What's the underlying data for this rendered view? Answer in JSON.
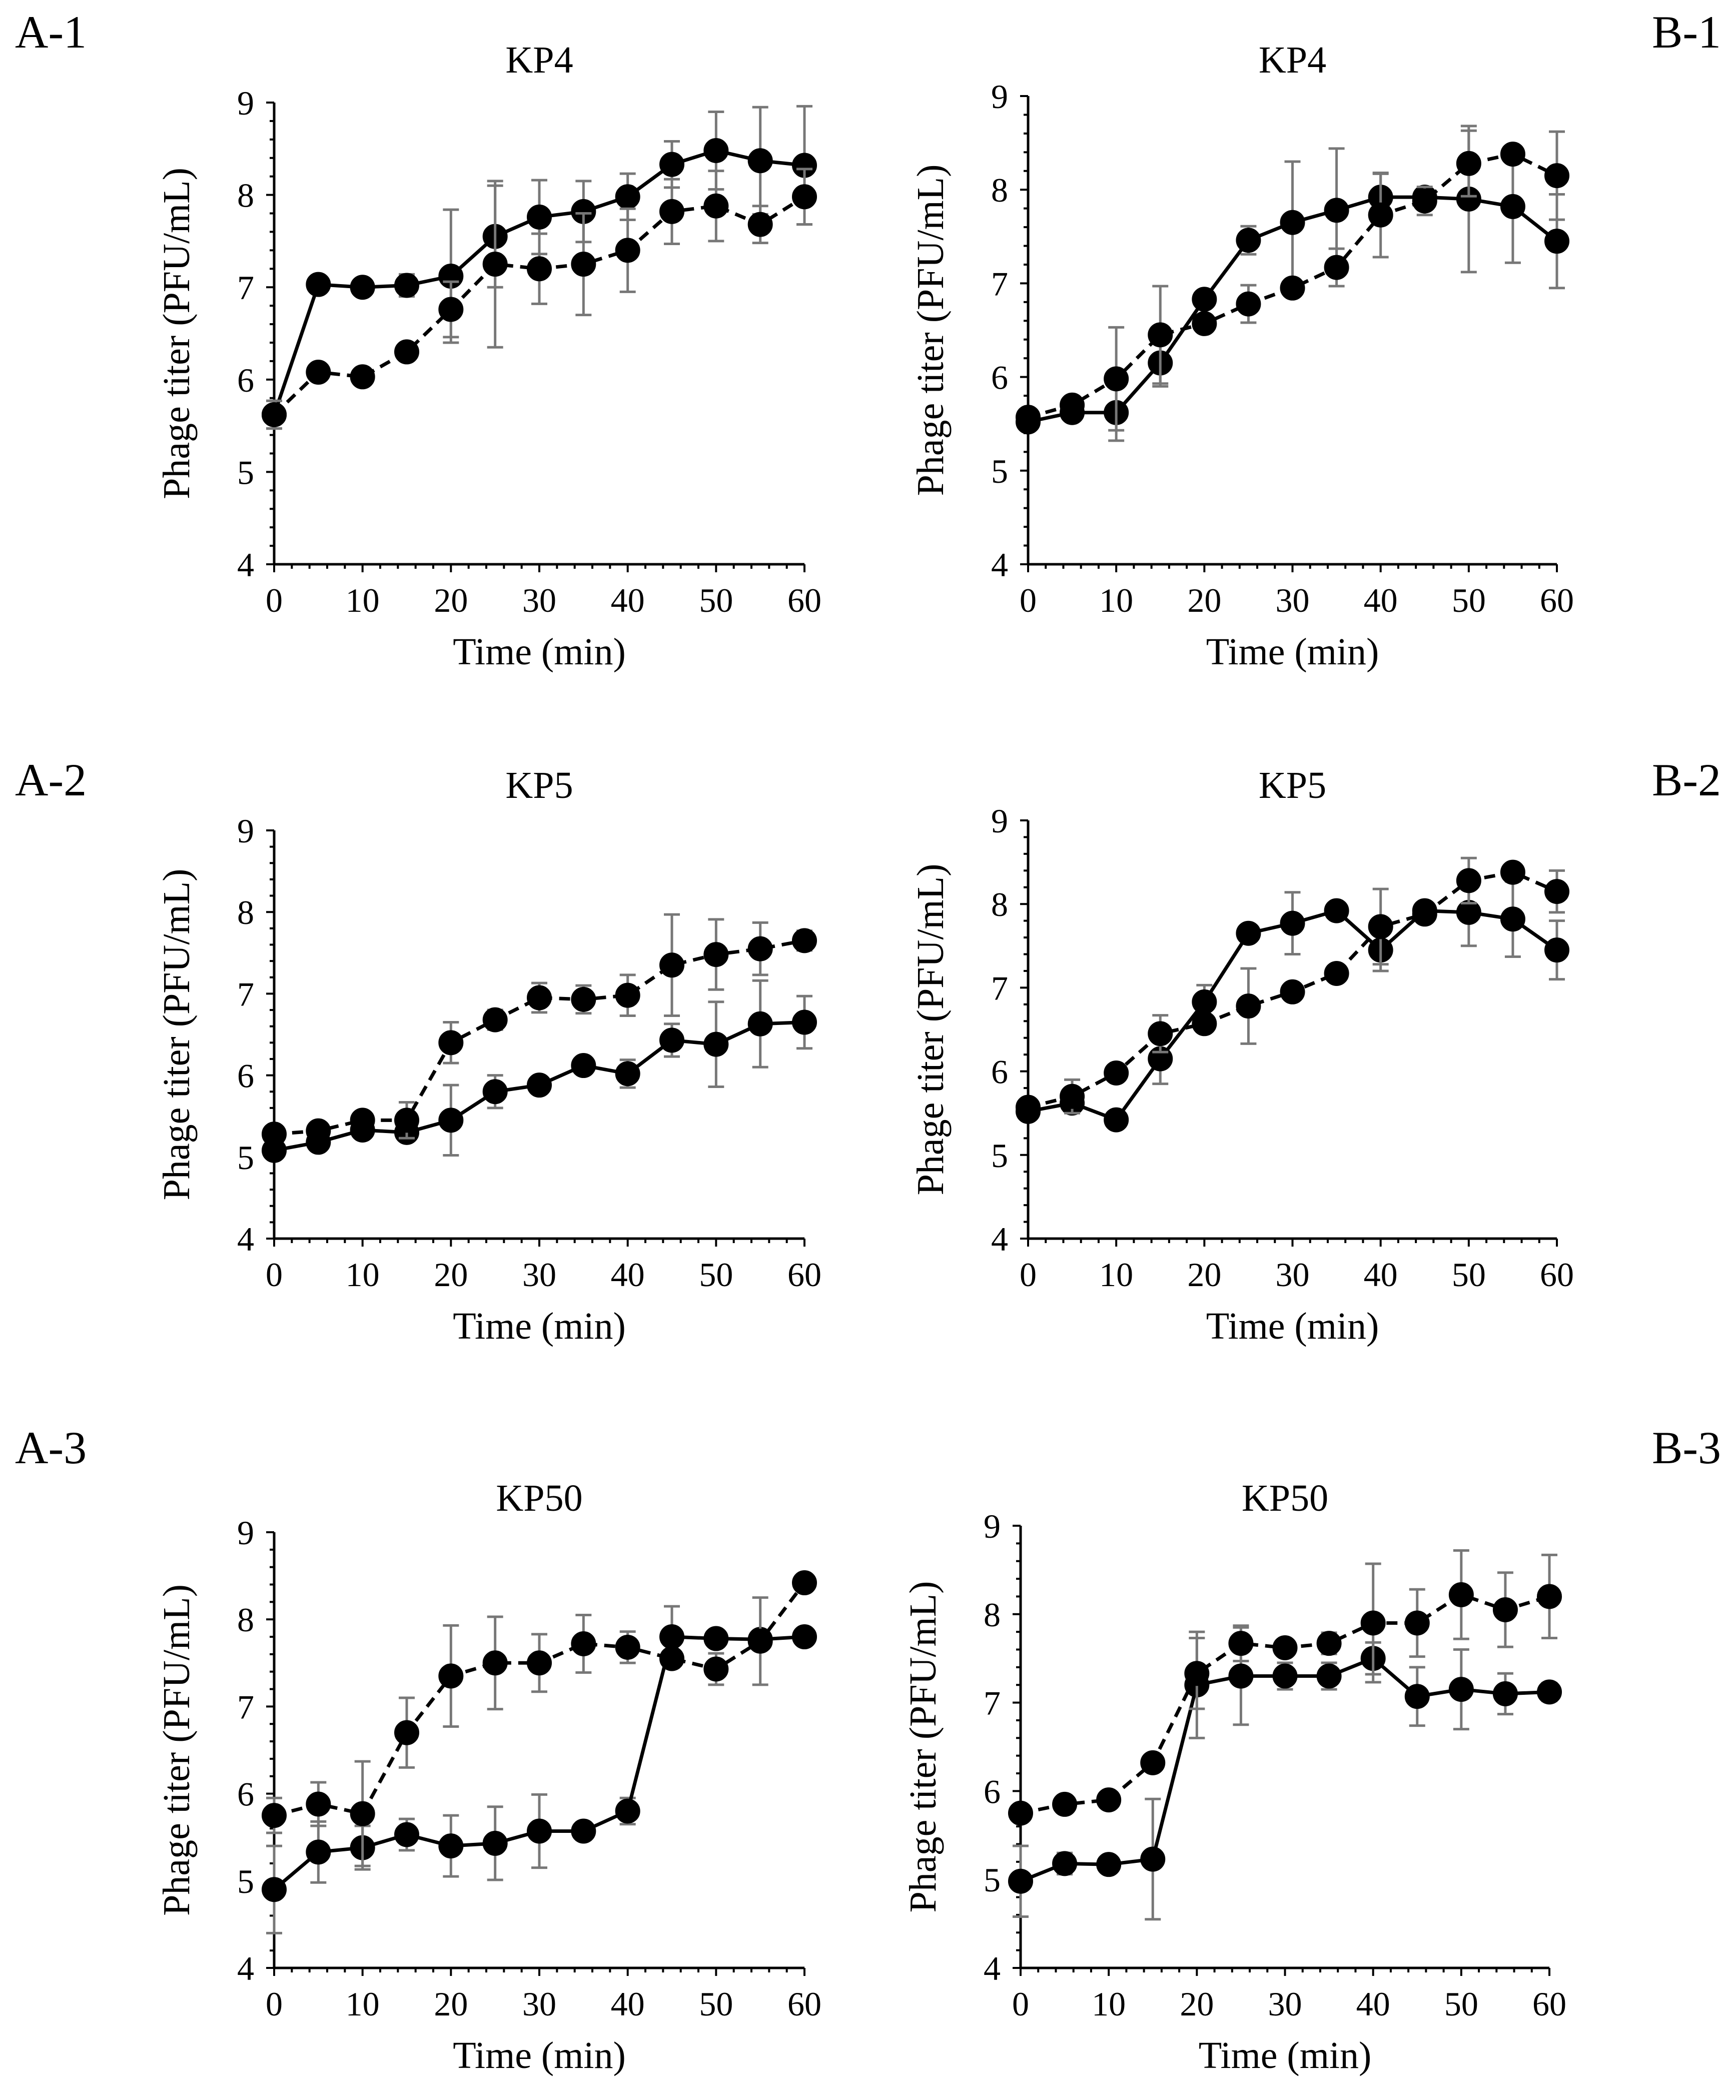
{
  "chart_data": [
    {
      "type": "line",
      "panel_label": "A-1",
      "title": "KP4",
      "xlabel": "Time (min)",
      "ylabel": "Phage titer (PFU/mL)",
      "xlim": [
        0,
        60
      ],
      "ylim": [
        4,
        9
      ],
      "x_ticks": [
        "0",
        "10",
        "20",
        "30",
        "40",
        "50",
        "60"
      ],
      "y_ticks": [
        "4",
        "5",
        "6",
        "7",
        "8",
        "9"
      ],
      "x": [
        0,
        5,
        10,
        15,
        20,
        25,
        30,
        35,
        40,
        45,
        50,
        55,
        60
      ],
      "series": [
        {
          "name": "solid",
          "style": "solid",
          "values": [
            5.62,
            7.03,
            7.0,
            7.02,
            7.12,
            7.55,
            7.76,
            7.82,
            7.98,
            8.33,
            8.48,
            8.37,
            8.32
          ],
          "errors": [
            0.15,
            0.05,
            0.05,
            0.12,
            0.72,
            0.55,
            0.4,
            0.33,
            0.25,
            0.25,
            0.42,
            0.58,
            0.64
          ]
        },
        {
          "name": "dashed",
          "style": "dashed",
          "values": [
            5.62,
            6.08,
            6.03,
            6.3,
            6.76,
            7.25,
            7.2,
            7.25,
            7.4,
            7.82,
            7.88,
            7.68,
            7.98
          ],
          "errors": [
            0.15,
            0.05,
            0.05,
            0.05,
            0.3,
            0.9,
            0.38,
            0.55,
            0.45,
            0.35,
            0.38,
            0.2,
            0.3
          ]
        }
      ]
    },
    {
      "type": "line",
      "panel_label": "B-1",
      "title": "KP4",
      "xlabel": "Time (min)",
      "ylabel": "Phage titer (PFU/mL)",
      "xlim": [
        0,
        60
      ],
      "ylim": [
        4,
        9
      ],
      "x_ticks": [
        "0",
        "10",
        "20",
        "30",
        "40",
        "50",
        "60"
      ],
      "y_ticks": [
        "4",
        "5",
        "6",
        "7",
        "8",
        "9"
      ],
      "x": [
        0,
        5,
        10,
        15,
        20,
        25,
        30,
        35,
        40,
        45,
        50,
        55,
        60
      ],
      "series": [
        {
          "name": "solid",
          "style": "solid",
          "values": [
            5.52,
            5.62,
            5.62,
            6.15,
            6.83,
            7.46,
            7.65,
            7.78,
            7.92,
            7.92,
            7.9,
            7.82,
            7.45
          ],
          "errors": [
            0.05,
            0.05,
            0.3,
            0.25,
            0.05,
            0.15,
            0.65,
            0.66,
            0.25,
            0.08,
            0.78,
            0.6,
            0.5
          ]
        },
        {
          "name": "dashed",
          "style": "dashed",
          "values": [
            5.57,
            5.7,
            5.98,
            6.45,
            6.57,
            6.78,
            6.95,
            7.17,
            7.73,
            7.88,
            8.28,
            8.38,
            8.15
          ],
          "errors": [
            0.05,
            0.05,
            0.55,
            0.52,
            0.05,
            0.2,
            0.05,
            0.2,
            0.45,
            0.15,
            0.35,
            0.05,
            0.47
          ]
        }
      ]
    },
    {
      "type": "line",
      "panel_label": "A-2",
      "title": "KP5",
      "xlabel": "Time (min)",
      "ylabel": "Phage titer (PFU/mL)",
      "xlim": [
        0,
        60
      ],
      "ylim": [
        4,
        9
      ],
      "x_ticks": [
        "0",
        "10",
        "20",
        "30",
        "40",
        "50",
        "60"
      ],
      "y_ticks": [
        "4",
        "5",
        "6",
        "7",
        "8",
        "9"
      ],
      "x": [
        0,
        5,
        10,
        15,
        20,
        25,
        30,
        35,
        40,
        45,
        50,
        55,
        60
      ],
      "series": [
        {
          "name": "solid",
          "style": "solid",
          "values": [
            5.08,
            5.18,
            5.33,
            5.3,
            5.45,
            5.8,
            5.88,
            6.12,
            6.02,
            6.43,
            6.38,
            6.63,
            6.65
          ],
          "errors": [
            0.05,
            0.05,
            0.1,
            0.05,
            0.43,
            0.2,
            0.05,
            0.1,
            0.17,
            0.2,
            0.52,
            0.53,
            0.32
          ]
        },
        {
          "name": "dashed",
          "style": "dashed",
          "values": [
            5.28,
            5.32,
            5.45,
            5.45,
            6.4,
            6.68,
            6.95,
            6.93,
            6.98,
            7.35,
            7.48,
            7.55,
            7.65
          ],
          "errors": [
            0.05,
            0.05,
            0.1,
            0.22,
            0.25,
            0.12,
            0.18,
            0.17,
            0.25,
            0.62,
            0.43,
            0.32,
            0.12
          ]
        }
      ]
    },
    {
      "type": "line",
      "panel_label": "B-2",
      "title": "KP5",
      "xlabel": "Time (min)",
      "ylabel": "Phage titer (PFU/mL)",
      "xlim": [
        0,
        60
      ],
      "ylim": [
        4,
        9
      ],
      "x_ticks": [
        "0",
        "10",
        "20",
        "30",
        "40",
        "50",
        "60"
      ],
      "y_ticks": [
        "4",
        "5",
        "6",
        "7",
        "8",
        "9"
      ],
      "x": [
        0,
        5,
        10,
        15,
        20,
        25,
        30,
        35,
        40,
        45,
        50,
        55,
        60
      ],
      "series": [
        {
          "name": "solid",
          "style": "solid",
          "values": [
            5.52,
            5.62,
            5.42,
            6.15,
            6.83,
            7.65,
            7.77,
            7.92,
            7.45,
            7.92,
            7.9,
            7.82,
            7.45
          ],
          "errors": [
            0.05,
            0.1,
            0.05,
            0.3,
            0.2,
            0.05,
            0.37,
            0.05,
            0.25,
            0.1,
            0.4,
            0.45,
            0.35
          ]
        },
        {
          "name": "dashed",
          "style": "dashed",
          "values": [
            5.57,
            5.7,
            5.98,
            6.45,
            6.57,
            6.78,
            6.95,
            7.17,
            7.73,
            7.88,
            8.28,
            8.38,
            8.15
          ],
          "errors": [
            0.05,
            0.2,
            0.05,
            0.22,
            0.05,
            0.45,
            0.05,
            0.1,
            0.45,
            0.1,
            0.27,
            0.05,
            0.25
          ]
        }
      ]
    },
    {
      "type": "line",
      "panel_label": "A-3",
      "title": "KP50",
      "xlabel": "Time (min)",
      "ylabel": "Phage titer (PFU/mL)",
      "xlim": [
        0,
        60
      ],
      "ylim": [
        4,
        9
      ],
      "x_ticks": [
        "0",
        "10",
        "20",
        "30",
        "40",
        "50",
        "60"
      ],
      "y_ticks": [
        "4",
        "5",
        "6",
        "7",
        "8",
        "9"
      ],
      "x": [
        0,
        5,
        10,
        15,
        20,
        25,
        30,
        35,
        40,
        45,
        50,
        55,
        60
      ],
      "series": [
        {
          "name": "solid",
          "style": "solid",
          "values": [
            4.9,
            5.33,
            5.38,
            5.53,
            5.4,
            5.43,
            5.57,
            5.57,
            5.8,
            7.8,
            7.78,
            7.77,
            7.8
          ],
          "errors": [
            0.5,
            0.35,
            0.25,
            0.18,
            0.35,
            0.42,
            0.42,
            0.1,
            0.15,
            0.35,
            0.05,
            0.05,
            0.05
          ]
        },
        {
          "name": "dashed",
          "style": "dashed",
          "values": [
            5.75,
            5.88,
            5.77,
            6.7,
            7.35,
            7.5,
            7.5,
            7.72,
            7.68,
            7.55,
            7.43,
            7.75,
            8.42
          ],
          "errors": [
            0.2,
            0.25,
            0.6,
            0.4,
            0.58,
            0.53,
            0.33,
            0.33,
            0.18,
            0.05,
            0.18,
            0.5,
            0.05
          ]
        }
      ]
    },
    {
      "type": "line",
      "panel_label": "B-3",
      "title": "KP50",
      "xlabel": "Time (min)",
      "ylabel": "Phage titer (PFU/mL)",
      "xlim": [
        0,
        60
      ],
      "ylim": [
        4,
        9
      ],
      "x_ticks": [
        "0",
        "10",
        "20",
        "30",
        "40",
        "50",
        "60"
      ],
      "y_ticks": [
        "4",
        "5",
        "6",
        "7",
        "8",
        "9"
      ],
      "x": [
        0,
        5,
        10,
        15,
        20,
        25,
        30,
        35,
        40,
        45,
        50,
        55,
        60
      ],
      "series": [
        {
          "name": "solid",
          "style": "solid",
          "values": [
            4.98,
            5.18,
            5.17,
            5.23,
            7.2,
            7.3,
            7.3,
            7.3,
            7.5,
            7.07,
            7.15,
            7.1,
            7.12
          ],
          "errors": [
            0.4,
            0.12,
            0.05,
            0.68,
            0.6,
            0.55,
            0.15,
            0.15,
            0.18,
            0.33,
            0.45,
            0.23,
            0.1
          ]
        },
        {
          "name": "dashed",
          "style": "dashed",
          "values": [
            5.75,
            5.85,
            5.9,
            6.32,
            7.33,
            7.67,
            7.62,
            7.67,
            7.9,
            7.9,
            8.22,
            8.05,
            8.2
          ],
          "errors": [
            0.05,
            0.05,
            0.05,
            0.05,
            0.4,
            0.2,
            0.05,
            0.12,
            0.67,
            0.38,
            0.5,
            0.42,
            0.47
          ]
        }
      ]
    }
  ]
}
